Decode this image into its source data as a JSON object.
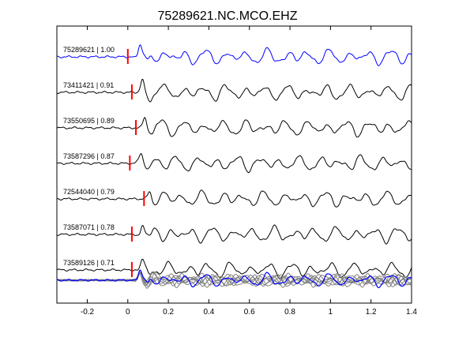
{
  "chart_data": {
    "type": "line",
    "title": "75289621.NC.MCO.EHZ",
    "xlabel": "",
    "ylabel": "",
    "xlim": [
      -0.35,
      1.4
    ],
    "xticks": [
      -0.2,
      0,
      0.2,
      0.4,
      0.6,
      0.8,
      1,
      1.2,
      1.4
    ],
    "xtick_labels": [
      "-0.2",
      "0",
      "0.2",
      "0.4",
      "0.6",
      "0.8",
      "1",
      "1.2",
      "1.4"
    ],
    "grid": false,
    "colors": {
      "reference": "#0000ff",
      "trace": "#000000",
      "pick": "#ff0000",
      "stack": "#808080"
    },
    "series": [
      {
        "label": "75289621 | 1.00",
        "pick_time": 0.0,
        "color": "#0000ff"
      },
      {
        "label": "73411421 | 0.91",
        "pick_time": 0.02,
        "color": "#000000"
      },
      {
        "label": "73550695 | 0.89",
        "pick_time": 0.04,
        "color": "#000000"
      },
      {
        "label": "73587296 | 0.87",
        "pick_time": 0.01,
        "color": "#000000"
      },
      {
        "label": "72544040 | 0.79",
        "pick_time": 0.08,
        "color": "#000000"
      },
      {
        "label": "73587071 | 0.78",
        "pick_time": 0.02,
        "color": "#000000"
      },
      {
        "label": "73589126 | 0.71",
        "pick_time": 0.02,
        "color": "#000000"
      }
    ],
    "stack": {
      "overlay_count": 7
    }
  }
}
